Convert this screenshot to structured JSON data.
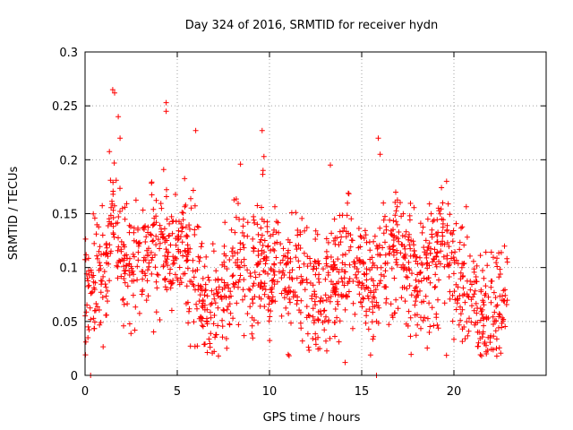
{
  "chart_data": {
    "type": "scatter",
    "title": "Day 324 of 2016, SRMTID for receiver hydn",
    "xlabel": "GPS time / hours",
    "ylabel": "SRMTID / TECUs",
    "xlim": [
      0,
      25
    ],
    "ylim": [
      0,
      0.3
    ],
    "xticks": [
      0,
      5,
      10,
      15,
      20
    ],
    "xtick_labels": [
      "0",
      "5",
      "10",
      "15",
      "20"
    ],
    "yticks": [
      0,
      0.05,
      0.1,
      0.15,
      0.2,
      0.25,
      0.3
    ],
    "ytick_labels": [
      "0",
      "0.05",
      "0.1",
      "0.15",
      "0.2",
      "0.25",
      "0.3"
    ],
    "grid": true,
    "marker": "+",
    "color": "#ff0000",
    "series": [
      {
        "name": "SRMTID",
        "x_range": [
          0,
          22.9
        ],
        "trend": [
          [
            0.0,
            0.07
          ],
          [
            0.5,
            0.085
          ],
          [
            1.0,
            0.095
          ],
          [
            1.5,
            0.15
          ],
          [
            2.0,
            0.11
          ],
          [
            2.5,
            0.1
          ],
          [
            3.0,
            0.11
          ],
          [
            3.5,
            0.12
          ],
          [
            4.0,
            0.125
          ],
          [
            4.5,
            0.12
          ],
          [
            5.0,
            0.12
          ],
          [
            5.5,
            0.11
          ],
          [
            6.0,
            0.095
          ],
          [
            6.5,
            0.07
          ],
          [
            7.0,
            0.065
          ],
          [
            7.5,
            0.08
          ],
          [
            8.0,
            0.1
          ],
          [
            8.5,
            0.1
          ],
          [
            9.0,
            0.1
          ],
          [
            9.5,
            0.11
          ],
          [
            10.0,
            0.095
          ],
          [
            10.5,
            0.105
          ],
          [
            11.0,
            0.095
          ],
          [
            11.5,
            0.09
          ],
          [
            12.0,
            0.08
          ],
          [
            12.5,
            0.075
          ],
          [
            13.0,
            0.075
          ],
          [
            13.5,
            0.09
          ],
          [
            14.0,
            0.11
          ],
          [
            14.5,
            0.11
          ],
          [
            15.0,
            0.1
          ],
          [
            15.5,
            0.085
          ],
          [
            16.0,
            0.1
          ],
          [
            16.5,
            0.12
          ],
          [
            17.0,
            0.115
          ],
          [
            17.5,
            0.1
          ],
          [
            18.0,
            0.09
          ],
          [
            18.5,
            0.1
          ],
          [
            19.0,
            0.11
          ],
          [
            19.5,
            0.115
          ],
          [
            20.0,
            0.1
          ],
          [
            20.5,
            0.085
          ],
          [
            21.0,
            0.07
          ],
          [
            21.5,
            0.06
          ],
          [
            22.0,
            0.055
          ],
          [
            22.5,
            0.06
          ],
          [
            22.9,
            0.07
          ]
        ],
        "spread": 0.028,
        "outliers": [
          [
            0.3,
            0.0
          ],
          [
            1.5,
            0.265
          ],
          [
            1.6,
            0.262
          ],
          [
            1.8,
            0.24
          ],
          [
            1.9,
            0.22
          ],
          [
            4.4,
            0.253
          ],
          [
            4.4,
            0.245
          ],
          [
            6.0,
            0.227
          ],
          [
            9.6,
            0.227
          ],
          [
            9.7,
            0.203
          ],
          [
            13.3,
            0.195
          ],
          [
            14.1,
            0.012
          ],
          [
            15.8,
            0.0
          ],
          [
            15.9,
            0.22
          ],
          [
            16.0,
            0.205
          ],
          [
            19.6,
            0.18
          ],
          [
            21.5,
            0.018
          ]
        ]
      }
    ]
  }
}
